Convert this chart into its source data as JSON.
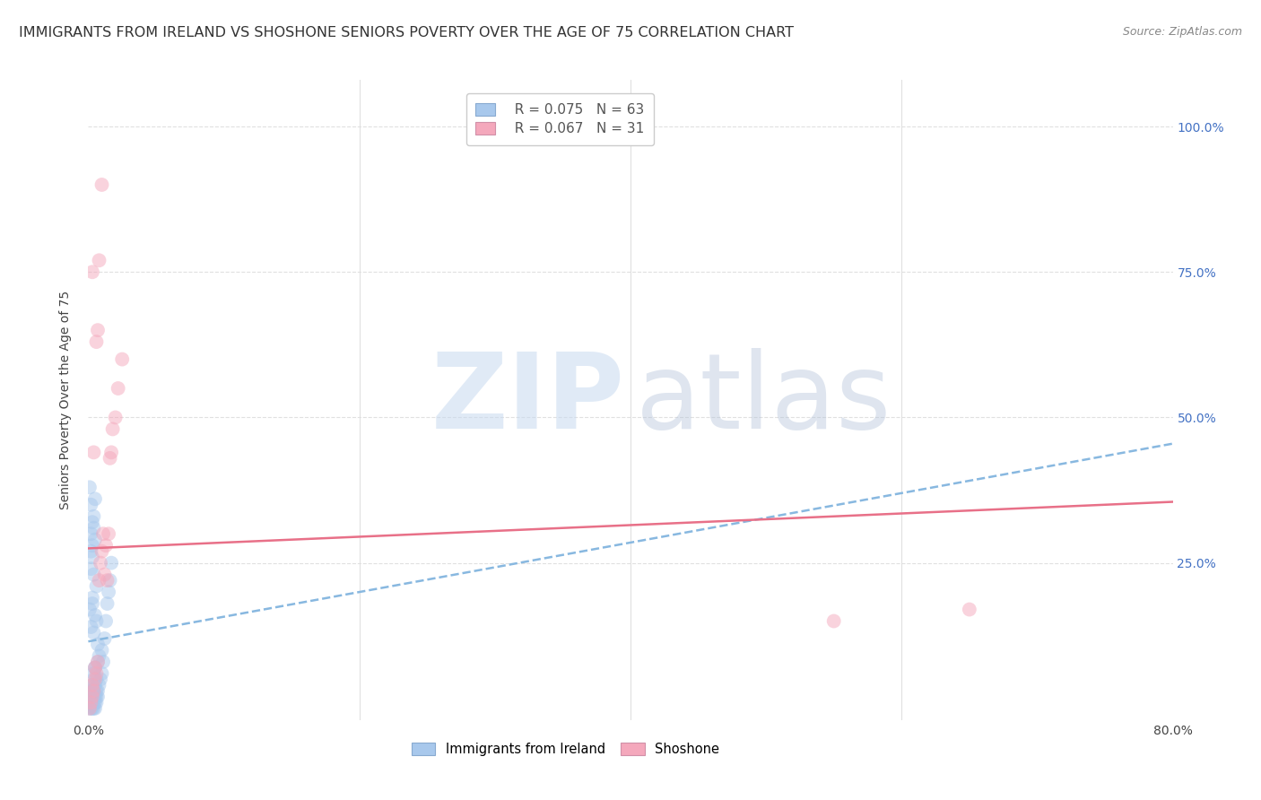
{
  "title": "IMMIGRANTS FROM IRELAND VS SHOSHONE SENIORS POVERTY OVER THE AGE OF 75 CORRELATION CHART",
  "source": "Source: ZipAtlas.com",
  "ylabel": "Seniors Poverty Over the Age of 75",
  "xlim": [
    0.0,
    0.8
  ],
  "ylim": [
    -0.02,
    1.08
  ],
  "legend_entries": [
    {
      "label": "Immigrants from Ireland",
      "color": "#a8c8ec",
      "R": "0.075",
      "N": "63"
    },
    {
      "label": "Shoshone",
      "color": "#f4a8bc",
      "R": "0.067",
      "N": "31"
    }
  ],
  "blue_scatter_x": [
    0.001,
    0.001,
    0.002,
    0.002,
    0.002,
    0.003,
    0.003,
    0.003,
    0.003,
    0.003,
    0.004,
    0.004,
    0.004,
    0.004,
    0.004,
    0.004,
    0.005,
    0.005,
    0.005,
    0.005,
    0.005,
    0.006,
    0.006,
    0.006,
    0.006,
    0.007,
    0.007,
    0.007,
    0.008,
    0.008,
    0.009,
    0.01,
    0.01,
    0.011,
    0.012,
    0.013,
    0.014,
    0.015,
    0.016,
    0.017,
    0.002,
    0.002,
    0.003,
    0.003,
    0.004,
    0.004,
    0.005,
    0.005,
    0.006,
    0.007,
    0.001,
    0.002,
    0.003,
    0.004,
    0.005,
    0.006,
    0.002,
    0.003,
    0.004,
    0.005,
    0.001,
    0.002,
    0.003
  ],
  "blue_scatter_y": [
    0.0,
    0.01,
    0.0,
    0.02,
    0.03,
    0.0,
    0.01,
    0.02,
    0.03,
    0.04,
    0.0,
    0.01,
    0.02,
    0.03,
    0.05,
    0.06,
    0.0,
    0.01,
    0.02,
    0.04,
    0.07,
    0.01,
    0.02,
    0.03,
    0.05,
    0.02,
    0.03,
    0.08,
    0.04,
    0.09,
    0.05,
    0.06,
    0.1,
    0.08,
    0.12,
    0.15,
    0.18,
    0.2,
    0.22,
    0.25,
    0.27,
    0.3,
    0.28,
    0.32,
    0.33,
    0.31,
    0.29,
    0.36,
    0.15,
    0.11,
    0.17,
    0.14,
    0.19,
    0.13,
    0.16,
    0.21,
    0.24,
    0.26,
    0.23,
    0.07,
    0.38,
    0.35,
    0.18
  ],
  "pink_scatter_x": [
    0.001,
    0.002,
    0.003,
    0.003,
    0.004,
    0.005,
    0.005,
    0.006,
    0.007,
    0.008,
    0.009,
    0.01,
    0.011,
    0.012,
    0.013,
    0.014,
    0.015,
    0.016,
    0.017,
    0.018,
    0.02,
    0.022,
    0.025,
    0.004,
    0.006,
    0.008,
    0.01,
    0.55,
    0.65,
    0.003,
    0.007
  ],
  "pink_scatter_y": [
    0.0,
    0.01,
    0.02,
    0.04,
    0.03,
    0.05,
    0.07,
    0.06,
    0.08,
    0.22,
    0.25,
    0.27,
    0.3,
    0.23,
    0.28,
    0.22,
    0.3,
    0.43,
    0.44,
    0.48,
    0.5,
    0.55,
    0.6,
    0.44,
    0.63,
    0.77,
    0.9,
    0.15,
    0.17,
    0.75,
    0.65
  ],
  "blue_line_x": [
    0.0,
    0.8
  ],
  "blue_line_y": [
    0.115,
    0.455
  ],
  "pink_line_x": [
    0.0,
    0.8
  ],
  "pink_line_y": [
    0.275,
    0.355
  ],
  "watermark_zip": "ZIP",
  "watermark_atlas": "atlas",
  "background_color": "#ffffff",
  "grid_color": "#e0e0e0",
  "scatter_size": 130,
  "scatter_alpha": 0.5,
  "title_fontsize": 11.5,
  "source_fontsize": 9,
  "axis_label_fontsize": 10,
  "tick_fontsize": 10,
  "right_tick_color": "#4472c4",
  "legend_R_color": "#4472c4",
  "legend_N_color": "#e84060"
}
